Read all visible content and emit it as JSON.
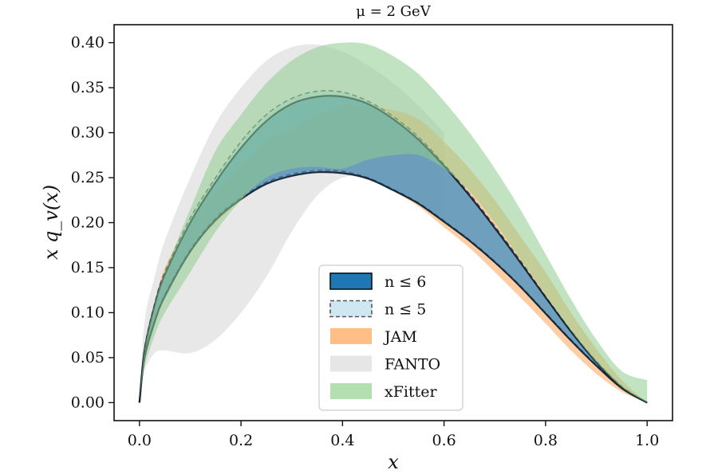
{
  "chart_data": {
    "type": "area",
    "title": "μ = 2 GeV",
    "xlabel": "x",
    "ylabel": "x q_v(x)",
    "xlim": [
      -0.05,
      1.05
    ],
    "ylim": [
      -0.02,
      0.42
    ],
    "xticks": [
      0.0,
      0.2,
      0.4,
      0.6,
      0.8,
      1.0
    ],
    "xtick_labels": [
      "0.0",
      "0.2",
      "0.4",
      "0.6",
      "0.8",
      "1.0"
    ],
    "yticks": [
      0.0,
      0.05,
      0.1,
      0.15,
      0.2,
      0.25,
      0.3,
      0.35,
      0.4
    ],
    "ytick_labels": [
      "0.00",
      "0.05",
      "0.10",
      "0.15",
      "0.20",
      "0.25",
      "0.30",
      "0.35",
      "0.40"
    ],
    "grid": false,
    "legend_position": "bottom-center",
    "series": [
      {
        "name": "FANTO",
        "color": "#d9d9d9",
        "opacity": 0.6,
        "x": [
          0.0,
          0.01,
          0.03,
          0.05,
          0.1,
          0.15,
          0.2,
          0.25,
          0.3,
          0.35,
          0.4,
          0.45,
          0.5,
          0.55,
          0.6
        ],
        "lower": [
          0.0,
          0.035,
          0.055,
          0.058,
          0.055,
          0.07,
          0.1,
          0.14,
          0.19,
          0.23,
          0.25,
          0.25,
          0.235,
          0.22,
          0.2
        ],
        "upper": [
          0.0,
          0.09,
          0.14,
          0.18,
          0.25,
          0.31,
          0.35,
          0.38,
          0.395,
          0.398,
          0.39,
          0.375,
          0.355,
          0.33,
          0.3
        ]
      },
      {
        "name": "JAM",
        "color": "#ffbe86",
        "opacity": 0.75,
        "x": [
          0.0,
          0.01,
          0.03,
          0.05,
          0.1,
          0.15,
          0.2,
          0.25,
          0.3,
          0.35,
          0.4,
          0.45,
          0.5,
          0.55,
          0.6,
          0.65,
          0.7,
          0.75,
          0.8,
          0.85,
          0.9,
          0.95,
          1.0
        ],
        "lower": [
          0.0,
          0.05,
          0.09,
          0.12,
          0.17,
          0.2,
          0.225,
          0.245,
          0.255,
          0.258,
          0.256,
          0.248,
          0.235,
          0.218,
          0.195,
          0.172,
          0.145,
          0.117,
          0.088,
          0.058,
          0.032,
          0.012,
          0.0
        ],
        "upper": [
          0.0,
          0.06,
          0.11,
          0.15,
          0.2,
          0.235,
          0.265,
          0.29,
          0.305,
          0.32,
          0.33,
          0.33,
          0.325,
          0.315,
          0.29,
          0.26,
          0.225,
          0.185,
          0.145,
          0.1,
          0.06,
          0.025,
          0.0
        ]
      },
      {
        "name": "n ≤ 5",
        "color": "#a6d4e6",
        "opacity": 0.55,
        "dashed": true,
        "edge_color": "#555555",
        "x": [
          0.0,
          0.01,
          0.03,
          0.05,
          0.1,
          0.15,
          0.2,
          0.25,
          0.3,
          0.35,
          0.4,
          0.45,
          0.5,
          0.55,
          0.6,
          0.65,
          0.7,
          0.75,
          0.8,
          0.85,
          0.9,
          0.95,
          1.0
        ],
        "lower": [
          0.0,
          0.05,
          0.09,
          0.12,
          0.17,
          0.205,
          0.228,
          0.245,
          0.254,
          0.258,
          0.257,
          0.25,
          0.237,
          0.222,
          0.202,
          0.181,
          0.157,
          0.13,
          0.1,
          0.07,
          0.042,
          0.017,
          0.0
        ],
        "upper": [
          0.0,
          0.06,
          0.11,
          0.145,
          0.205,
          0.25,
          0.29,
          0.32,
          0.338,
          0.346,
          0.345,
          0.335,
          0.318,
          0.295,
          0.265,
          0.232,
          0.196,
          0.158,
          0.118,
          0.08,
          0.046,
          0.018,
          0.0
        ]
      },
      {
        "name": "n ≤ 6",
        "color": "#1f77b4",
        "opacity": 0.55,
        "dashed": false,
        "edge_color": "#0a1a2a",
        "x": [
          0.0,
          0.01,
          0.03,
          0.05,
          0.1,
          0.15,
          0.2,
          0.25,
          0.3,
          0.35,
          0.4,
          0.45,
          0.5,
          0.55,
          0.6,
          0.65,
          0.7,
          0.75,
          0.8,
          0.85,
          0.9,
          0.95,
          1.0
        ],
        "lower": [
          0.0,
          0.05,
          0.09,
          0.118,
          0.168,
          0.203,
          0.226,
          0.243,
          0.252,
          0.256,
          0.255,
          0.249,
          0.236,
          0.221,
          0.201,
          0.18,
          0.156,
          0.129,
          0.099,
          0.069,
          0.041,
          0.016,
          0.0
        ],
        "upper": [
          0.0,
          0.058,
          0.108,
          0.142,
          0.2,
          0.245,
          0.283,
          0.313,
          0.332,
          0.34,
          0.34,
          0.332,
          0.315,
          0.292,
          0.263,
          0.23,
          0.194,
          0.156,
          0.117,
          0.079,
          0.045,
          0.017,
          0.0
        ]
      },
      {
        "name": "xFitter",
        "color": "#90cc8e",
        "opacity": 0.55,
        "x": [
          0.0,
          0.01,
          0.03,
          0.05,
          0.1,
          0.15,
          0.2,
          0.25,
          0.3,
          0.35,
          0.4,
          0.45,
          0.5,
          0.55,
          0.6,
          0.65,
          0.7,
          0.75,
          0.8,
          0.85,
          0.9,
          0.95,
          1.0
        ],
        "lower": [
          0.0,
          0.04,
          0.075,
          0.1,
          0.145,
          0.19,
          0.225,
          0.25,
          0.26,
          0.262,
          0.26,
          0.27,
          0.275,
          0.275,
          0.26,
          0.235,
          0.2,
          0.16,
          0.12,
          0.08,
          0.045,
          0.017,
          0.0
        ],
        "upper": [
          0.0,
          0.06,
          0.11,
          0.145,
          0.215,
          0.28,
          0.32,
          0.355,
          0.38,
          0.395,
          0.4,
          0.398,
          0.385,
          0.365,
          0.335,
          0.3,
          0.26,
          0.215,
          0.165,
          0.115,
          0.07,
          0.035,
          0.025
        ]
      }
    ],
    "legend": [
      {
        "label": "n ≤ 6",
        "color": "#1f77b4",
        "edge": "#111111",
        "dashed": false
      },
      {
        "label": "n ≤ 5",
        "color": "#cfe7f0",
        "edge": "#555555",
        "dashed": true
      },
      {
        "label": "JAM",
        "color": "#ffbe86",
        "edge": "none",
        "dashed": false
      },
      {
        "label": "FANTO",
        "color": "#e6e6e6",
        "edge": "none",
        "dashed": false
      },
      {
        "label": "xFitter",
        "color": "#b3dfb1",
        "edge": "none",
        "dashed": false
      }
    ]
  }
}
